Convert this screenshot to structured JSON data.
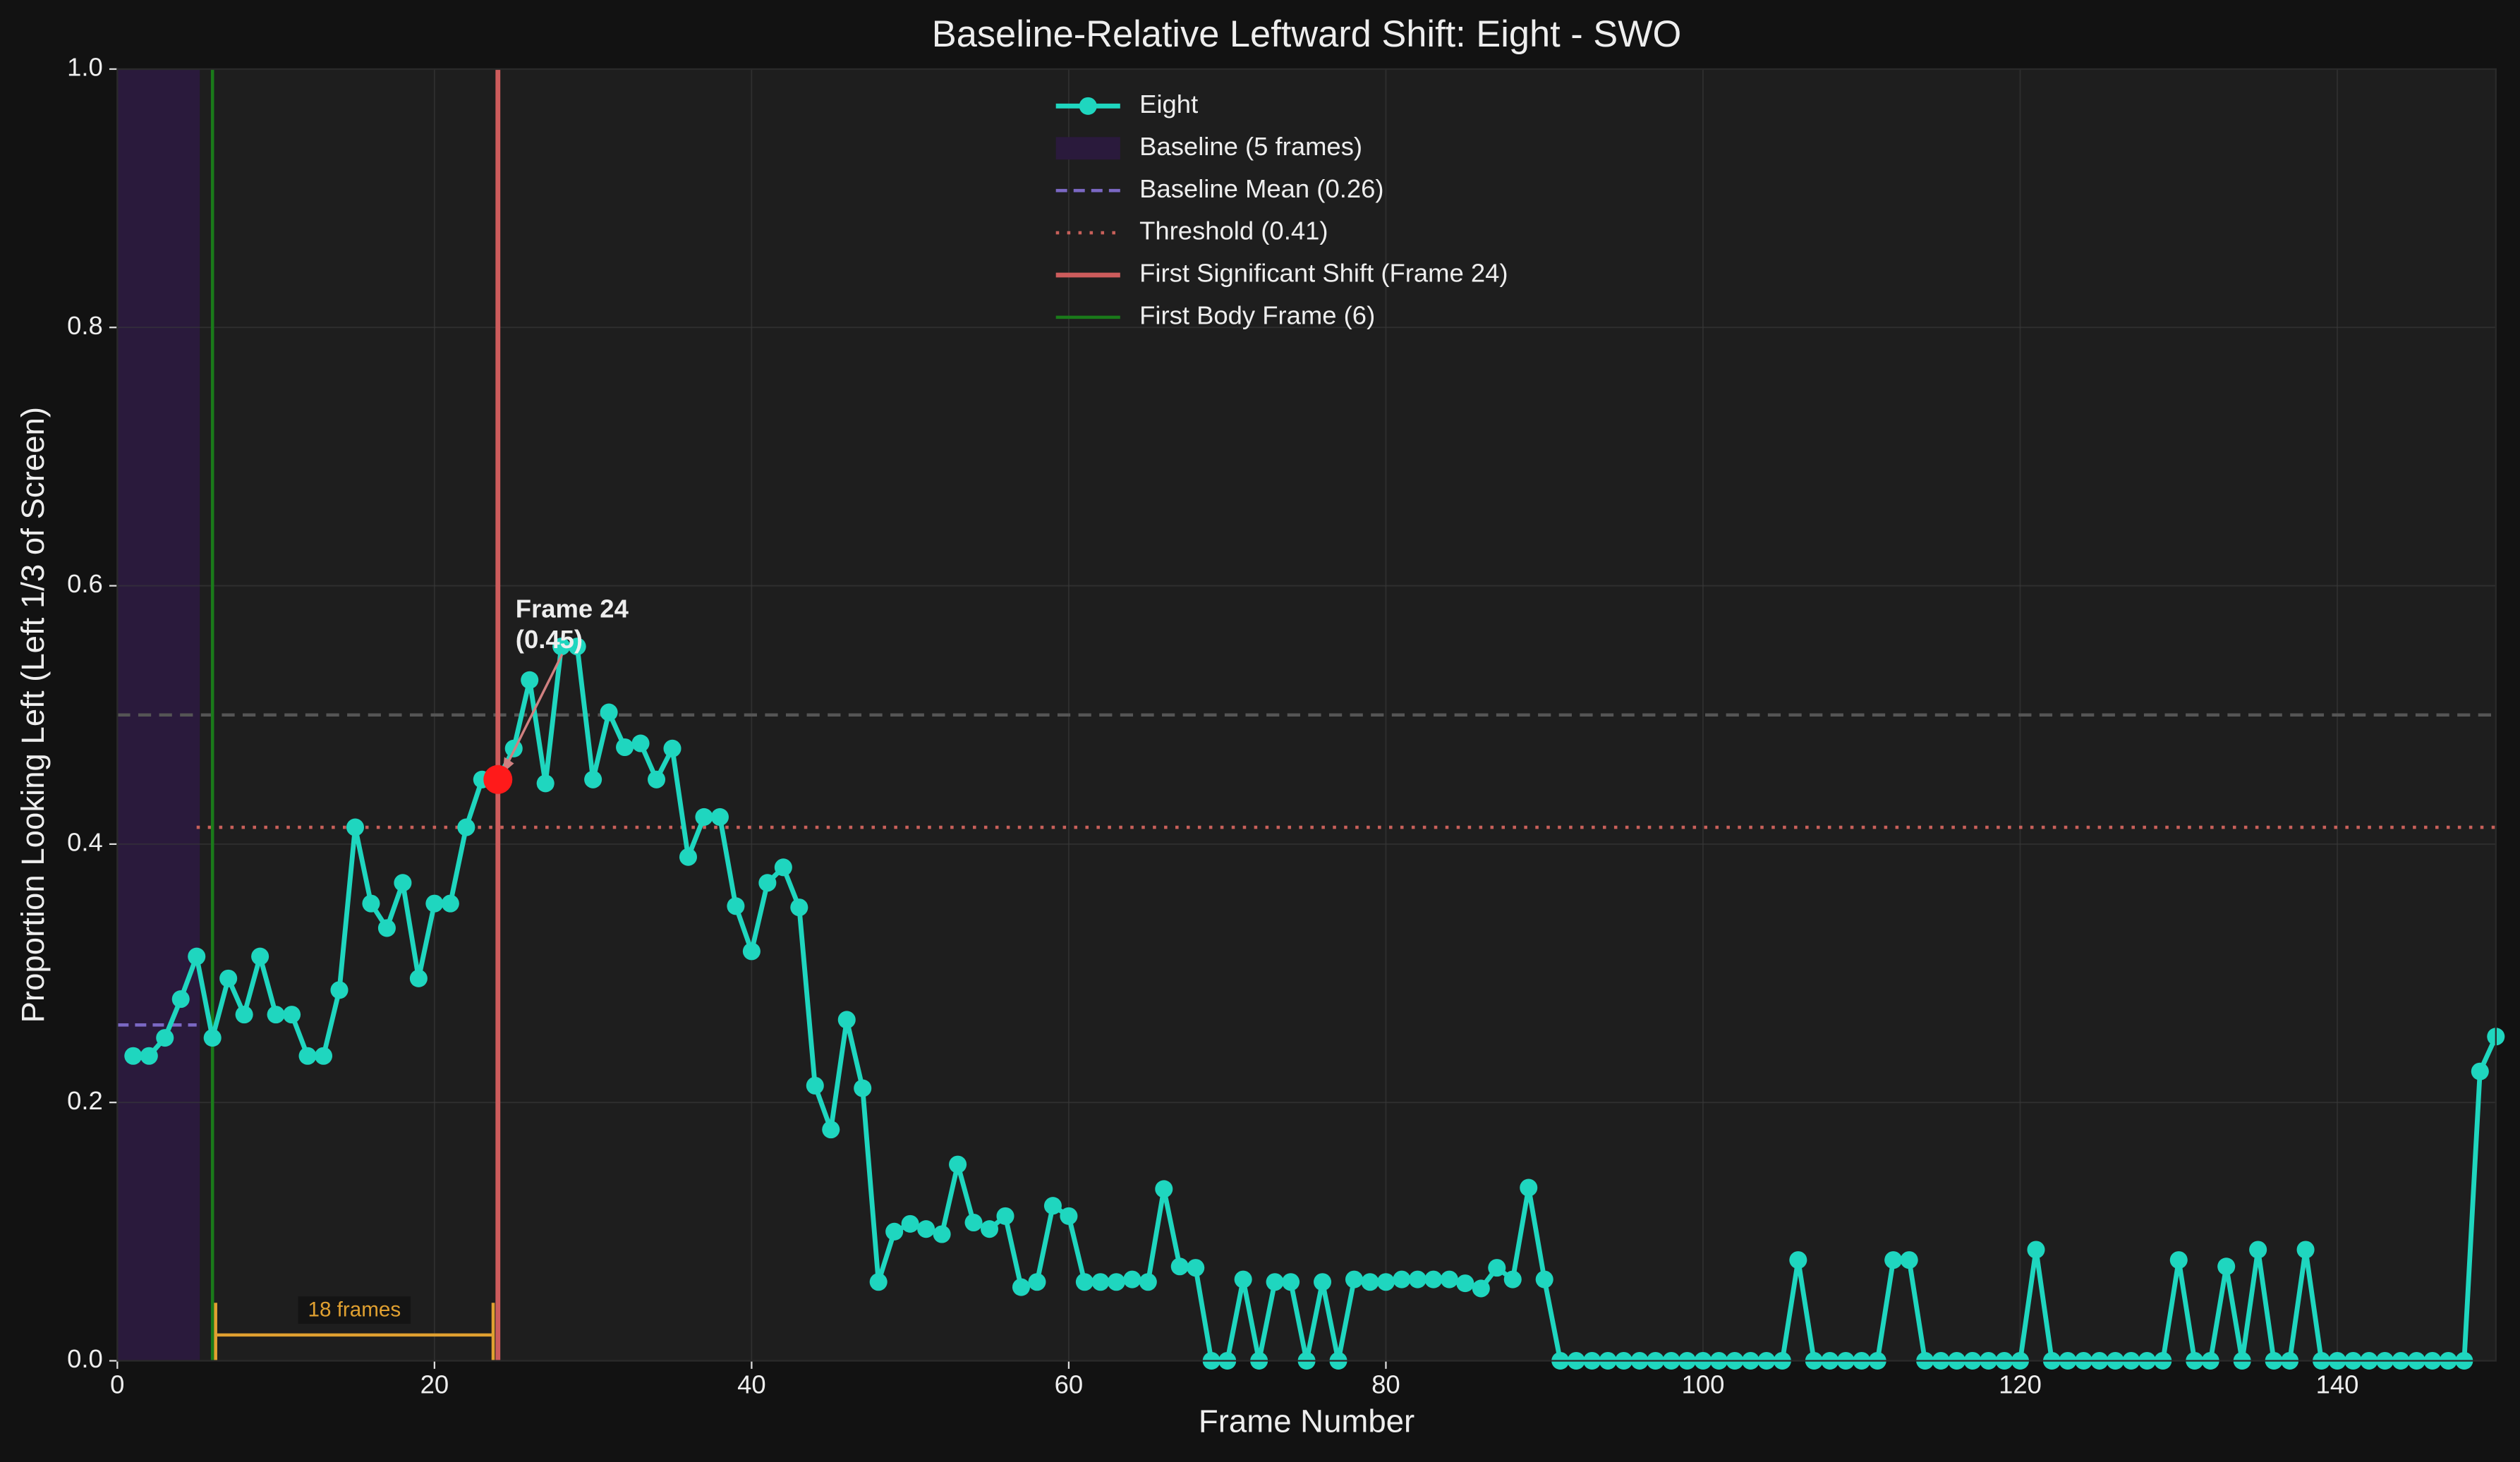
{
  "chart_data": {
    "type": "line",
    "title": "Baseline-Relative Leftward Shift: Eight - SWO",
    "x_label": "Frame Number",
    "y_label": "Proportion Looking Left (Left 1/3 of Screen)",
    "x": [
      1,
      2,
      3,
      4,
      5,
      6,
      7,
      8,
      9,
      10,
      11,
      12,
      13,
      14,
      15,
      16,
      17,
      18,
      19,
      20,
      21,
      22,
      23,
      24,
      25,
      26,
      27,
      28,
      29,
      30,
      31,
      32,
      33,
      34,
      35,
      36,
      37,
      38,
      39,
      40,
      41,
      42,
      43,
      44,
      45,
      46,
      47,
      48,
      49,
      50,
      51,
      52,
      53,
      54,
      55,
      56,
      57,
      58,
      59,
      60,
      61,
      62,
      63,
      64,
      65,
      66,
      67,
      68,
      69,
      70,
      71,
      72,
      73,
      74,
      75,
      76,
      77,
      78,
      79,
      80,
      81,
      82,
      83,
      84,
      85,
      86,
      87,
      88,
      89,
      90,
      91,
      92,
      93,
      94,
      95,
      96,
      97,
      98,
      99,
      100,
      101,
      102,
      103,
      104,
      105,
      106,
      107,
      108,
      109,
      110,
      111,
      112,
      113,
      114,
      115,
      116,
      117,
      118,
      119,
      120,
      121,
      122,
      123,
      124,
      125,
      126,
      127,
      128,
      129,
      130,
      131,
      132,
      133,
      134,
      135,
      136,
      137,
      138,
      139,
      140,
      141,
      142,
      143,
      144,
      145,
      146,
      147,
      148,
      149,
      150
    ],
    "series": [
      {
        "name": "Eight",
        "color": "#1fd6bf",
        "values": [
          0.236,
          0.236,
          0.25,
          0.28,
          0.313,
          0.25,
          0.296,
          0.268,
          0.313,
          0.268,
          0.268,
          0.236,
          0.236,
          0.287,
          0.413,
          0.354,
          0.335,
          0.37,
          0.296,
          0.354,
          0.354,
          0.413,
          0.45,
          0.45,
          0.474,
          0.527,
          0.447,
          0.553,
          0.553,
          0.45,
          0.502,
          0.475,
          0.478,
          0.45,
          0.474,
          0.39,
          0.421,
          0.421,
          0.352,
          0.317,
          0.37,
          0.382,
          0.351,
          0.213,
          0.179,
          0.264,
          0.211,
          0.061,
          0.1,
          0.106,
          0.102,
          0.098,
          0.152,
          0.107,
          0.102,
          0.112,
          0.057,
          0.061,
          0.12,
          0.112,
          0.061,
          0.061,
          0.061,
          0.063,
          0.061,
          0.133,
          0.073,
          0.072,
          0,
          0,
          0.063,
          0,
          0.061,
          0.061,
          0,
          0.061,
          0,
          0.063,
          0.061,
          0.061,
          0.063,
          0.063,
          0.063,
          0.063,
          0.06,
          0.056,
          0.072,
          0.063,
          0.134,
          0.063,
          0,
          0,
          0,
          0,
          0,
          0,
          0,
          0,
          0,
          0,
          0,
          0,
          0,
          0,
          0,
          0.078,
          0,
          0,
          0,
          0,
          0,
          0.078,
          0.078,
          0,
          0,
          0,
          0,
          0,
          0,
          0,
          0.086,
          0,
          0,
          0,
          0,
          0,
          0,
          0,
          0,
          0.078,
          0,
          0,
          0.073,
          0,
          0.086,
          0,
          0,
          0.086,
          0,
          0,
          0,
          0,
          0,
          0,
          0,
          0,
          0,
          0,
          0.224,
          0.251
        ]
      }
    ],
    "baseline": {
      "name": "Baseline (5 frames)",
      "color": "#2a1a3c",
      "xspan": [
        0,
        5.2
      ]
    },
    "baseline_mean": {
      "name": "Baseline Mean (0.26)",
      "color": "#7b68c4",
      "value": 0.26,
      "xspan": [
        0,
        5
      ]
    },
    "threshold": {
      "name": "Threshold (0.41)",
      "color": "#c8605a",
      "value": 0.413,
      "xspan": [
        5,
        150
      ]
    },
    "first_shift": {
      "name": "First Significant Shift (Frame 24)",
      "color": "#cd5c5c",
      "x": 24
    },
    "first_body": {
      "name": "First Body Frame (6)",
      "color": "#1a7a1a",
      "x": 6
    },
    "reference": {
      "value": 0.5,
      "color": "#555555"
    },
    "interval": {
      "label": "18 frames",
      "color": "#e0a030",
      "xspan": [
        6.2,
        23.7
      ],
      "y": 0.02
    },
    "highlight": {
      "color": "#ff1a1a",
      "label": [
        "Frame 24",
        "(0.45)"
      ]
    },
    "xlim": [
      0,
      150
    ],
    "ylim": [
      0,
      1
    ],
    "xticks": [
      0,
      20,
      40,
      60,
      80,
      100,
      120,
      140
    ],
    "yticks": [
      {
        "value": 0,
        "label": "0.0"
      },
      {
        "value": 0.2,
        "label": "0.2"
      },
      {
        "value": 0.4,
        "label": "0.4"
      },
      {
        "value": 0.6,
        "label": "0.6"
      },
      {
        "value": 0.8,
        "label": "0.8"
      },
      {
        "value": 1,
        "label": "1.0"
      }
    ],
    "grid": true,
    "legend": "upper center"
  }
}
